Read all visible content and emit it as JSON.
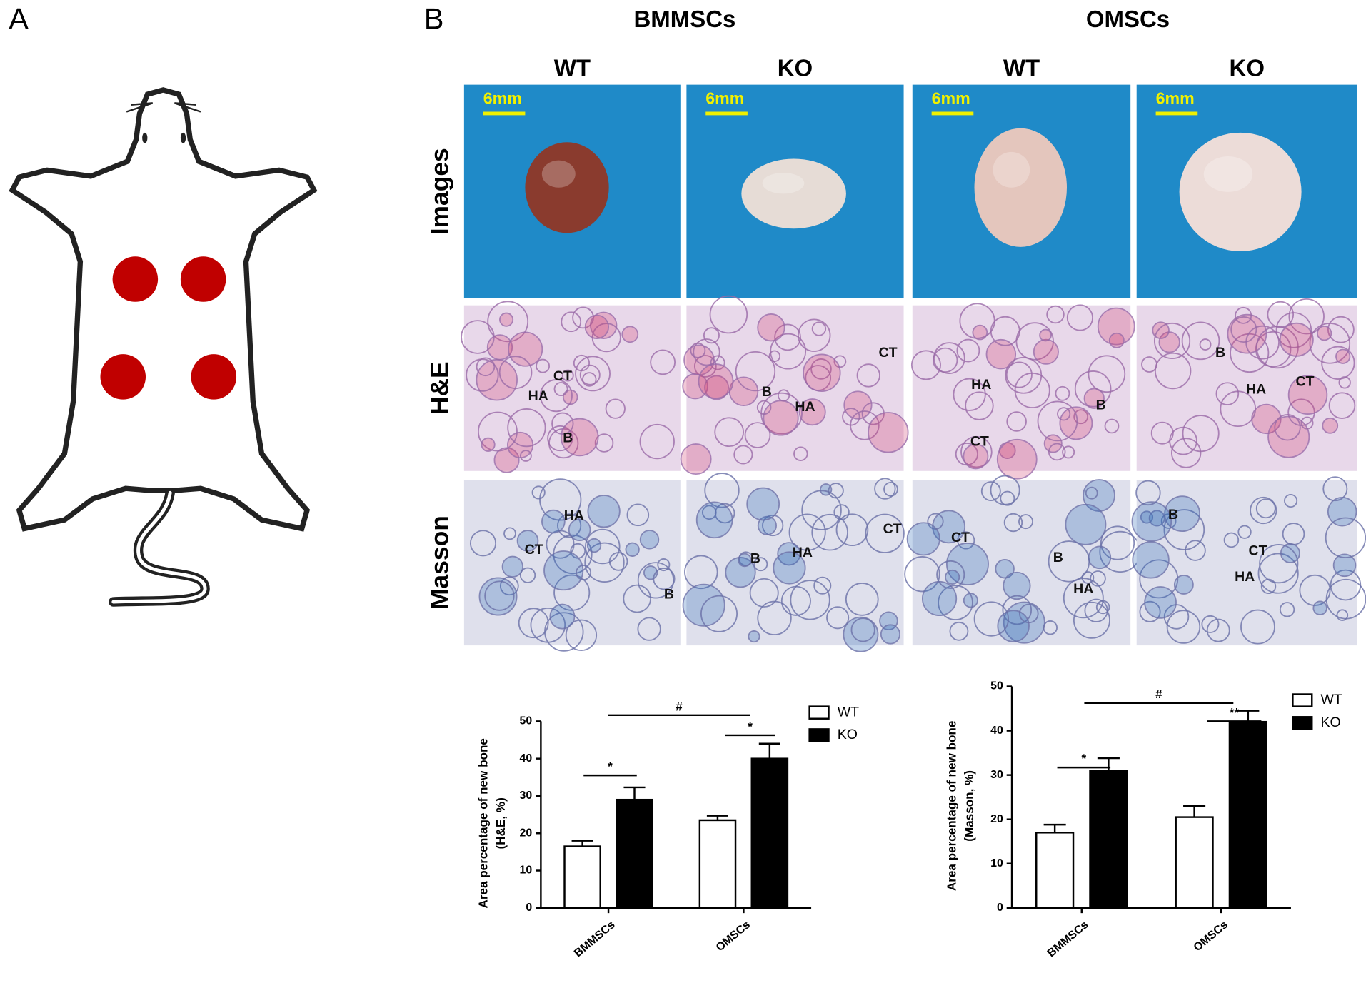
{
  "figure": {
    "panel_a": "A",
    "panel_b": "B",
    "groups": [
      "BMMSCs",
      "OMSCs"
    ],
    "columns": [
      "WT",
      "KO",
      "WT",
      "KO"
    ],
    "rows": [
      "Images",
      "H&E",
      "Masson"
    ],
    "scale_bar": "6mm",
    "he_labels": [
      [
        "CT",
        "HA",
        "B"
      ],
      [
        "CT",
        "B",
        "HA"
      ],
      [
        "HA",
        "B",
        "CT"
      ],
      [
        "B",
        "HA",
        "CT"
      ]
    ],
    "masson_labels": [
      [
        "HA",
        "CT",
        "B"
      ],
      [
        "CT",
        "B",
        "HA"
      ],
      [
        "CT",
        "B",
        "HA"
      ],
      [
        "B",
        "CT",
        "HA"
      ]
    ]
  },
  "chart_data": [
    {
      "type": "bar",
      "ylabel": [
        "Area percentage of new bone",
        "(H&E, %)"
      ],
      "categories": [
        "BMMSCs",
        "OMSCs"
      ],
      "series": [
        {
          "name": "WT",
          "color": "#ffffff",
          "values": [
            16.5,
            23.5
          ],
          "errors": [
            1.5,
            1.2
          ]
        },
        {
          "name": "KO",
          "color": "#000000",
          "values": [
            29,
            40
          ],
          "errors": [
            3.3,
            4
          ]
        }
      ],
      "ylim": [
        0,
        50
      ],
      "yticks": [
        0,
        10,
        20,
        30,
        40,
        50
      ],
      "annotations": [
        "*",
        "*",
        "#"
      ]
    },
    {
      "type": "bar",
      "ylabel": [
        "Area percentage of new bone",
        "(Masson, %)"
      ],
      "categories": [
        "BMMSCs",
        "OMSCs"
      ],
      "series": [
        {
          "name": "WT",
          "color": "#ffffff",
          "values": [
            17,
            20.5
          ],
          "errors": [
            1.8,
            2.5
          ]
        },
        {
          "name": "KO",
          "color": "#000000",
          "values": [
            31,
            42
          ],
          "errors": [
            2.8,
            2.5
          ]
        }
      ],
      "ylim": [
        0,
        50
      ],
      "yticks": [
        0,
        10,
        20,
        30,
        40,
        50
      ],
      "annotations": [
        "*",
        "**",
        "#"
      ]
    }
  ]
}
